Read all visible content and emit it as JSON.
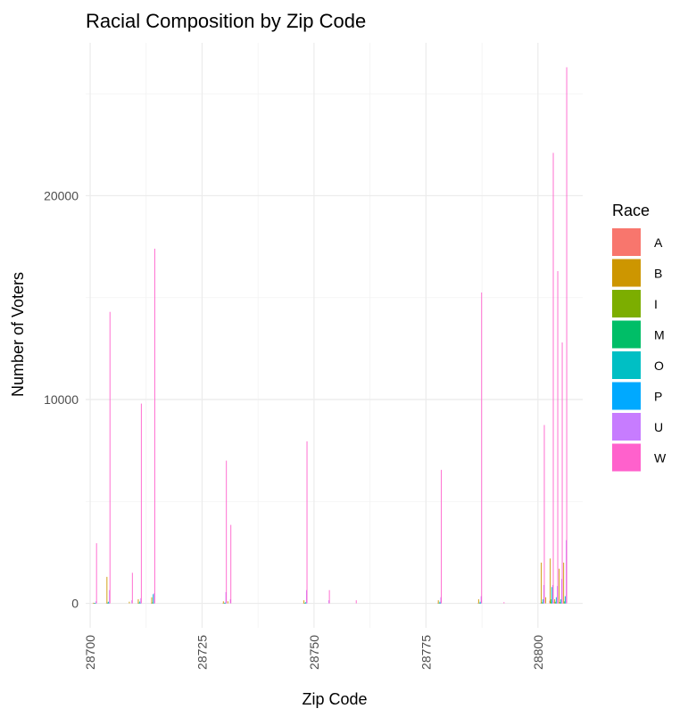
{
  "chart_data": {
    "type": "bar",
    "title": "Racial Composition by Zip Code",
    "xlabel": "Zip Code",
    "ylabel": "Number of Voters",
    "xlim": [
      28699,
      28810
    ],
    "ylim": [
      -1200,
      27500
    ],
    "x_ticks": [
      28700,
      28725,
      28750,
      28775,
      28800
    ],
    "x_tick_labels": [
      "28700",
      "28725",
      "28750",
      "28775",
      "28800"
    ],
    "y_ticks": [
      0,
      10000,
      20000
    ],
    "y_tick_labels": [
      "0",
      "10000",
      "20000"
    ],
    "grid": true,
    "legend_position": "right",
    "legend_title": "Race",
    "bar_layout": "dodged",
    "series": [
      {
        "name": "A",
        "color": "#F8766D",
        "points": [
          [
            28701,
            20
          ],
          [
            28704,
            30
          ],
          [
            28711,
            20
          ],
          [
            28714,
            20
          ],
          [
            28730,
            20
          ],
          [
            28748,
            20
          ],
          [
            28778,
            20
          ],
          [
            28787,
            25
          ],
          [
            28801,
            30
          ],
          [
            28803,
            130
          ],
          [
            28804,
            60
          ],
          [
            28805,
            40
          ],
          [
            28806,
            30
          ]
        ]
      },
      {
        "name": "B",
        "color": "#CD9600",
        "points": [
          [
            28701,
            30
          ],
          [
            28704,
            1300
          ],
          [
            28709,
            80
          ],
          [
            28711,
            200
          ],
          [
            28714,
            300
          ],
          [
            28730,
            100
          ],
          [
            28731,
            100
          ],
          [
            28748,
            150
          ],
          [
            28778,
            150
          ],
          [
            28787,
            200
          ],
          [
            28801,
            2000
          ],
          [
            28802,
            300
          ],
          [
            28803,
            2200
          ],
          [
            28804,
            200
          ],
          [
            28805,
            1700
          ],
          [
            28806,
            2000
          ]
        ]
      },
      {
        "name": "I",
        "color": "#7CAE00",
        "points": [
          [
            28701,
            10
          ],
          [
            28704,
            40
          ],
          [
            28711,
            30
          ],
          [
            28714,
            40
          ],
          [
            28730,
            20
          ],
          [
            28748,
            20
          ],
          [
            28778,
            20
          ],
          [
            28787,
            20
          ],
          [
            28801,
            40
          ],
          [
            28803,
            60
          ],
          [
            28804,
            30
          ],
          [
            28805,
            30
          ],
          [
            28806,
            40
          ]
        ]
      },
      {
        "name": "M",
        "color": "#00BE67",
        "points": [
          [
            28701,
            10
          ],
          [
            28704,
            20
          ],
          [
            28711,
            30
          ],
          [
            28714,
            30
          ],
          [
            28730,
            15
          ],
          [
            28748,
            15
          ],
          [
            28778,
            15
          ],
          [
            28787,
            20
          ],
          [
            28801,
            50
          ],
          [
            28803,
            200
          ],
          [
            28804,
            80
          ],
          [
            28805,
            70
          ],
          [
            28806,
            100
          ]
        ]
      },
      {
        "name": "O",
        "color": "#00BFC4",
        "points": [
          [
            28701,
            20
          ],
          [
            28704,
            80
          ],
          [
            28711,
            90
          ],
          [
            28714,
            450
          ],
          [
            28730,
            40
          ],
          [
            28748,
            60
          ],
          [
            28778,
            80
          ],
          [
            28787,
            80
          ],
          [
            28801,
            200
          ],
          [
            28803,
            800
          ],
          [
            28804,
            300
          ],
          [
            28805,
            200
          ],
          [
            28806,
            350
          ]
        ]
      },
      {
        "name": "P",
        "color": "#00A9FF",
        "points": [
          [
            28701,
            5
          ],
          [
            28704,
            10
          ],
          [
            28711,
            10
          ],
          [
            28714,
            15
          ],
          [
            28730,
            5
          ],
          [
            28748,
            5
          ],
          [
            28778,
            5
          ],
          [
            28787,
            5
          ],
          [
            28801,
            10
          ],
          [
            28803,
            30
          ],
          [
            28804,
            15
          ],
          [
            28805,
            10
          ],
          [
            28806,
            15
          ]
        ]
      },
      {
        "name": "U",
        "color": "#C77CFF",
        "points": [
          [
            28701,
            100
          ],
          [
            28704,
            650
          ],
          [
            28709,
            150
          ],
          [
            28711,
            250
          ],
          [
            28714,
            500
          ],
          [
            28730,
            550
          ],
          [
            28731,
            200
          ],
          [
            28748,
            650
          ],
          [
            28753,
            150
          ],
          [
            28778,
            300
          ],
          [
            28787,
            350
          ],
          [
            28801,
            900
          ],
          [
            28803,
            900
          ],
          [
            28804,
            850
          ],
          [
            28805,
            1200
          ],
          [
            28806,
            3100
          ]
        ]
      },
      {
        "name": "W",
        "color": "#FF61CC",
        "points": [
          [
            28701,
            2950
          ],
          [
            28704,
            14300
          ],
          [
            28709,
            1500
          ],
          [
            28711,
            9800
          ],
          [
            28714,
            17400
          ],
          [
            28730,
            7000
          ],
          [
            28731,
            3850
          ],
          [
            28748,
            7950
          ],
          [
            28753,
            650
          ],
          [
            28759,
            150
          ],
          [
            28778,
            6550
          ],
          [
            28787,
            15250
          ],
          [
            28792,
            60
          ],
          [
            28801,
            8750
          ],
          [
            28803,
            22100
          ],
          [
            28804,
            16300
          ],
          [
            28805,
            12800
          ],
          [
            28806,
            26300
          ]
        ]
      }
    ]
  }
}
